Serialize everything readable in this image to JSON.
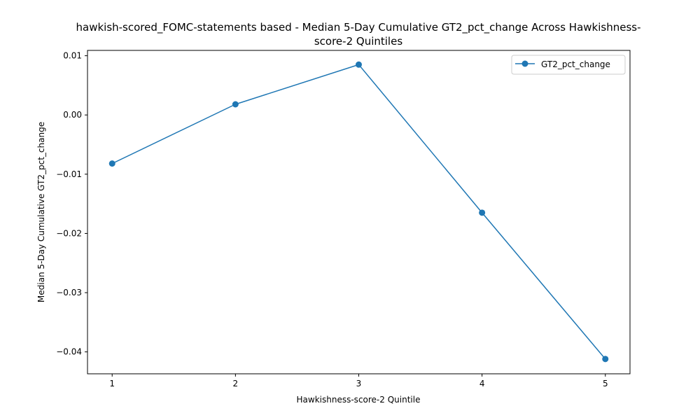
{
  "chart_data": {
    "type": "line",
    "title_lines": [
      "hawkish-scored_FOMC-statements based - Median 5-Day Cumulative GT2_pct_change Across Hawkishness-",
      "score-2 Quintiles"
    ],
    "xlabel": "Hawkishness-score-2 Quintile",
    "ylabel": "Median 5-Day Cumulative GT2_pct_change",
    "x": [
      1,
      2,
      3,
      4,
      5
    ],
    "x_ticks": [
      1,
      2,
      3,
      4,
      5
    ],
    "x_tick_labels": [
      "1",
      "2",
      "3",
      "4",
      "5"
    ],
    "y_ticks": [
      0.01,
      0.0,
      -0.01,
      -0.02,
      -0.03,
      -0.04
    ],
    "y_tick_labels": [
      "0.01",
      "0.00",
      "−0.01",
      "−0.02",
      "−0.03",
      "−0.04"
    ],
    "xlim": [
      0.8,
      5.2
    ],
    "ylim": [
      -0.0437,
      0.0109
    ],
    "grid": false,
    "legend_position": "upper-right",
    "series": [
      {
        "name": "GT2_pct_change",
        "color": "#1f77b4",
        "marker": "circle",
        "values": [
          -0.0082,
          0.0018,
          0.0085,
          -0.0165,
          -0.0412
        ]
      }
    ]
  }
}
